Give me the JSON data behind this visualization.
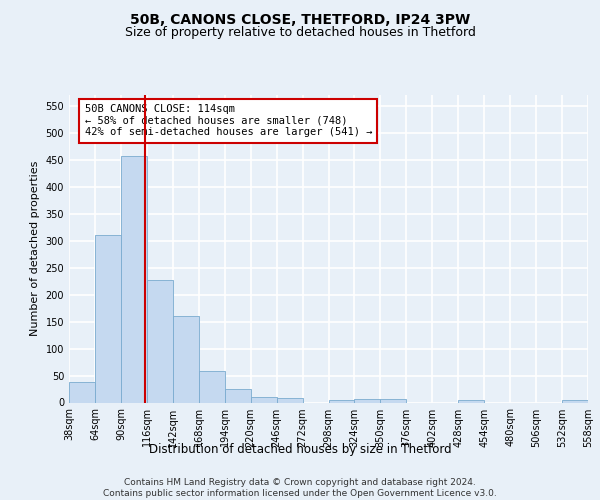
{
  "title": "50B, CANONS CLOSE, THETFORD, IP24 3PW",
  "subtitle": "Size of property relative to detached houses in Thetford",
  "xlabel": "Distribution of detached houses by size in Thetford",
  "ylabel": "Number of detached properties",
  "bin_edges": [
    38,
    64,
    90,
    116,
    142,
    168,
    194,
    220,
    246,
    272,
    298,
    324,
    350,
    376,
    402,
    428,
    454,
    480,
    506,
    532,
    558
  ],
  "bar_heights": [
    38,
    311,
    457,
    228,
    160,
    58,
    25,
    10,
    8,
    0,
    4,
    6,
    6,
    0,
    0,
    4,
    0,
    0,
    0,
    4
  ],
  "bar_color": "#c5d9f0",
  "bar_edge_color": "#7aabcf",
  "property_size": 114,
  "vline_color": "#cc0000",
  "annotation_text": "50B CANONS CLOSE: 114sqm\n← 58% of detached houses are smaller (748)\n42% of semi-detached houses are larger (541) →",
  "annotation_box_color": "#ffffff",
  "annotation_box_edge": "#cc0000",
  "ylim": [
    0,
    570
  ],
  "yticks": [
    0,
    50,
    100,
    150,
    200,
    250,
    300,
    350,
    400,
    450,
    500,
    550
  ],
  "footer_text": "Contains HM Land Registry data © Crown copyright and database right 2024.\nContains public sector information licensed under the Open Government Licence v3.0.",
  "bg_color": "#e8f0f8",
  "plot_bg_color": "#e8f0f8",
  "grid_color": "#ffffff",
  "title_fontsize": 10,
  "subtitle_fontsize": 9,
  "axis_label_fontsize": 8,
  "tick_fontsize": 7,
  "annotation_fontsize": 7.5,
  "footer_fontsize": 6.5
}
